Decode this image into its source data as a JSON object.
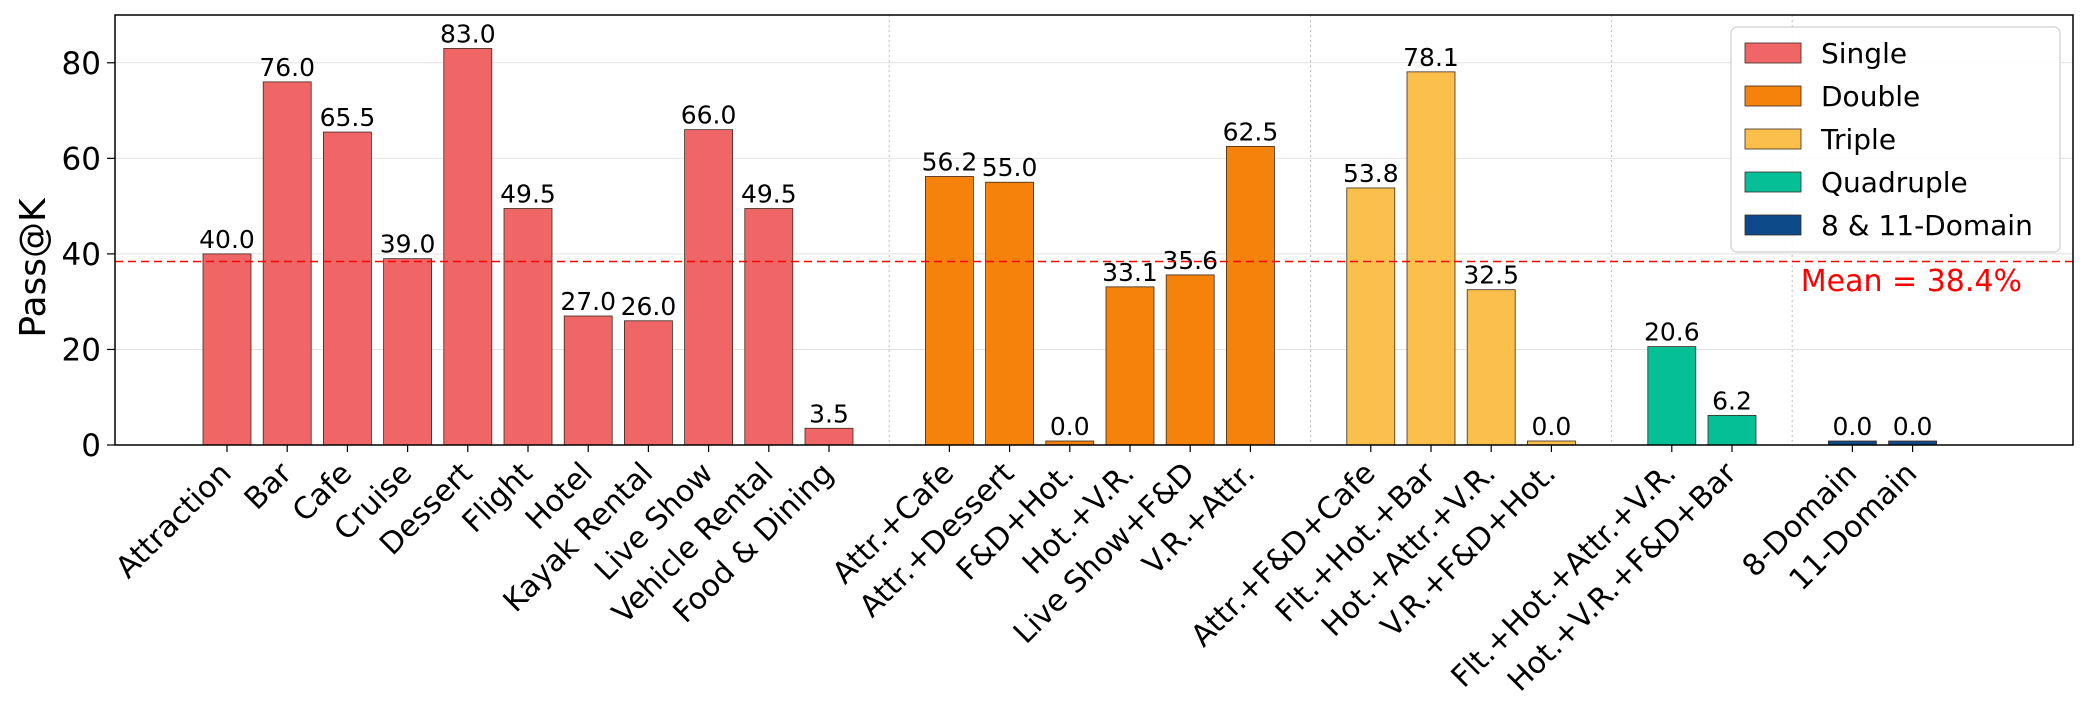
{
  "chart_data": {
    "type": "bar",
    "xlabel": "",
    "ylabel": "Pass@K",
    "ylim": [
      0,
      90
    ],
    "yticks": [
      0,
      20,
      40,
      60,
      80
    ],
    "grid": true,
    "legend_position": "top-right",
    "mean": {
      "value": 38.4,
      "label": "Mean = 38.4%",
      "color": "#ff0000"
    },
    "groups": [
      {
        "name": "Single",
        "color": "#f06666",
        "categories": [
          "Attraction",
          "Bar",
          "Cafe",
          "Cruise",
          "Dessert",
          "Flight",
          "Hotel",
          "Kayak Rental",
          "Live Show",
          "Vehicle Rental",
          "Food & Dining"
        ],
        "values": [
          40.0,
          76.0,
          65.5,
          39.0,
          83.0,
          49.5,
          27.0,
          26.0,
          66.0,
          49.5,
          3.5
        ],
        "labels": [
          "40.0",
          "76.0",
          "65.5",
          "39.0",
          "83.0",
          "49.5",
          "27.0",
          "26.0",
          "66.0",
          "49.5",
          "3.5"
        ]
      },
      {
        "name": "Double",
        "color": "#f5820b",
        "categories": [
          "Attr.+Cafe",
          "Attr.+Dessert",
          "F&D+Hot.",
          "Hot.+V.R.",
          "Live Show+F&D",
          "V.R.+Attr."
        ],
        "values": [
          56.2,
          55.0,
          0.0,
          33.1,
          35.6,
          62.5
        ],
        "labels": [
          "56.2",
          "55.0",
          "0.0",
          "33.1",
          "35.6",
          "62.5"
        ]
      },
      {
        "name": "Triple",
        "color": "#fbbf4b",
        "categories": [
          "Attr.+F&D+Cafe",
          "Flt.+Hot.+Bar",
          "Hot.+Attr.+V.R.",
          "V.R.+F&D+Hot."
        ],
        "values": [
          53.8,
          78.1,
          32.5,
          0.0
        ],
        "labels": [
          "53.8",
          "78.1",
          "32.5",
          "0.0"
        ]
      },
      {
        "name": "Quadruple",
        "color": "#05c096",
        "categories": [
          "Flt.+Hot.+Attr.+V.R.",
          "Hot.+V.R.+F&D+Bar"
        ],
        "values": [
          20.6,
          6.2
        ],
        "labels": [
          "20.6",
          "6.2"
        ]
      },
      {
        "name": "8 & 11-Domain",
        "color": "#0d4a8a",
        "categories": [
          "8-Domain",
          "11-Domain"
        ],
        "values": [
          0.0,
          0.0
        ],
        "labels": [
          "0.0",
          "0.0"
        ]
      }
    ]
  }
}
